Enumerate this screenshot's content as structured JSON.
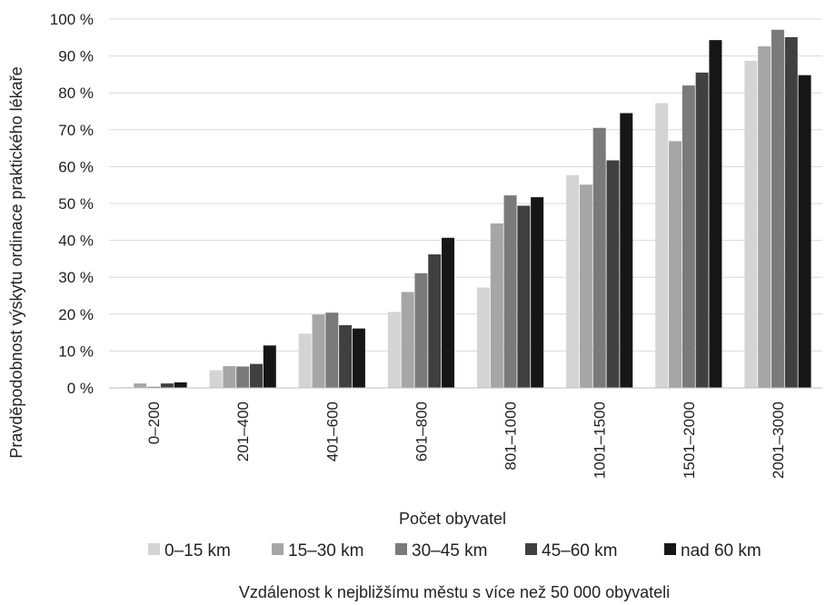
{
  "chart_data": {
    "type": "bar",
    "title": "",
    "xlabel": "Počet obyvatel",
    "ylabel": "Pravděpodobnost výskytu ordinace praktického lékaře",
    "ylim": [
      0,
      100
    ],
    "yticks": [
      "0 %",
      "10 %",
      "20 %",
      "30 %",
      "40 %",
      "50 %",
      "60 %",
      "70 %",
      "80 %",
      "90 %",
      "100 %"
    ],
    "categories": [
      "0–200",
      "201–400",
      "401–600",
      "601–800",
      "801–1000",
      "1001–1500",
      "1501–2000",
      "2001–3000"
    ],
    "series": [
      {
        "name": "0–15 km",
        "color": "#d4d4d4",
        "values": [
          0.2,
          4.8,
          14.7,
          20.6,
          27.2,
          57.7,
          77.2,
          88.7
        ]
      },
      {
        "name": "15–30 km",
        "color": "#a6a6a6",
        "values": [
          1.2,
          5.9,
          19.9,
          26.0,
          44.6,
          55.1,
          66.9,
          92.6
        ]
      },
      {
        "name": "30–45 km",
        "color": "#7a7a7a",
        "values": [
          0.3,
          5.8,
          20.4,
          31.1,
          52.2,
          70.5,
          82.0,
          97.1
        ]
      },
      {
        "name": "45–60 km",
        "color": "#404040",
        "values": [
          1.2,
          6.5,
          17.0,
          36.2,
          49.4,
          61.7,
          85.5,
          95.1
        ]
      },
      {
        "name": "nad 60 km",
        "color": "#161616",
        "values": [
          1.5,
          11.5,
          16.1,
          40.7,
          51.7,
          74.5,
          94.3,
          84.8
        ]
      }
    ],
    "grid": true,
    "legend_position": "bottom",
    "legend_note": "Vzdálenost k nejbližšímu městu s více než 50 000 obyvateli"
  }
}
